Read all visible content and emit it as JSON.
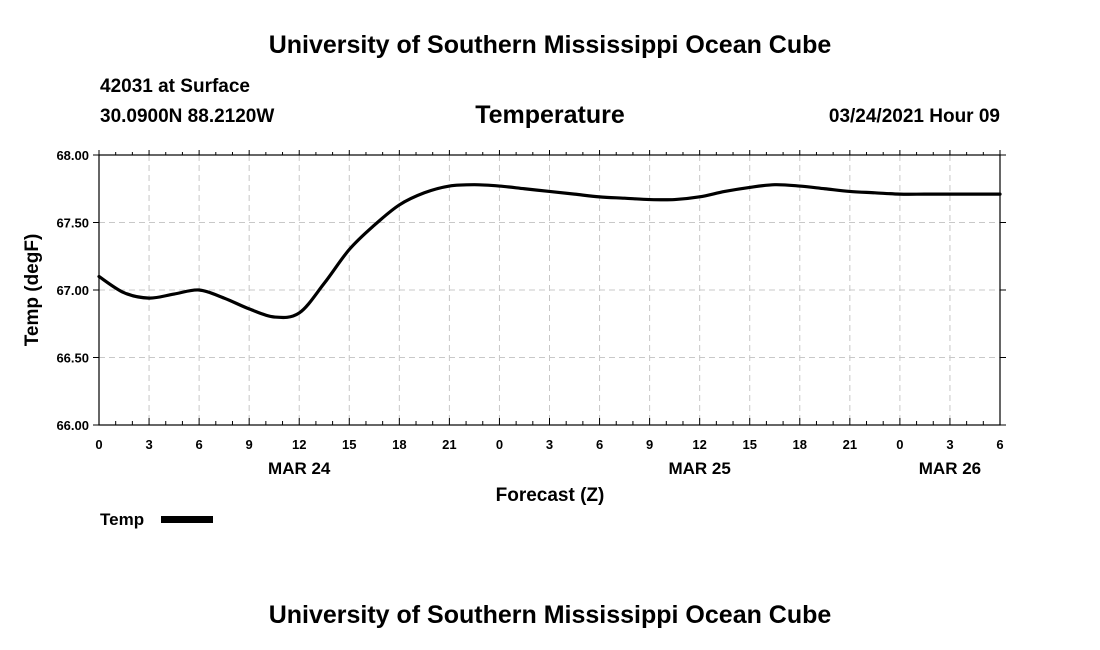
{
  "header": {
    "title_top": "University of Southern Mississippi Ocean Cube",
    "title_bottom": "University of Southern Mississippi Ocean Cube",
    "station": "42031 at Surface",
    "location": "30.0900N 88.2120W",
    "run_time": "03/24/2021 Hour 09"
  },
  "legend": {
    "label": "Temp"
  },
  "chart_data": {
    "type": "line",
    "title": "Temperature",
    "xlabel": "Forecast (Z)",
    "ylabel": "Temp (degF)",
    "ylim": [
      66.0,
      68.0
    ],
    "xlim": [
      0,
      54
    ],
    "yticks": [
      "66.00",
      "66.50",
      "67.00",
      "67.50",
      "68.00"
    ],
    "ytick_values": [
      66.0,
      66.5,
      67.0,
      67.5,
      68.0
    ],
    "xticks": [
      "0",
      "3",
      "6",
      "9",
      "12",
      "15",
      "18",
      "21",
      "0",
      "3",
      "6",
      "9",
      "12",
      "15",
      "18",
      "21",
      "0",
      "3",
      "6"
    ],
    "date_labels": [
      {
        "label": "MAR 24",
        "at": 12
      },
      {
        "label": "MAR 25",
        "at": 36
      },
      {
        "label": "MAR 26",
        "at": 51
      }
    ],
    "grid": true,
    "series": [
      {
        "name": "Temp",
        "x": [
          0,
          1.5,
          3,
          4.5,
          6,
          7.5,
          9,
          10.5,
          12,
          13.5,
          15,
          16.5,
          18,
          19.5,
          21,
          22.5,
          24,
          25.5,
          27,
          28.5,
          30,
          31.5,
          33,
          34.5,
          36,
          37.5,
          39,
          40.5,
          42,
          43.5,
          45,
          46.5,
          48,
          49.5,
          51,
          52.5,
          54
        ],
        "values": [
          67.1,
          66.98,
          66.94,
          66.97,
          67.0,
          66.94,
          66.86,
          66.8,
          66.83,
          67.05,
          67.3,
          67.48,
          67.63,
          67.72,
          67.77,
          67.78,
          67.77,
          67.75,
          67.73,
          67.71,
          67.69,
          67.68,
          67.67,
          67.67,
          67.69,
          67.73,
          67.76,
          67.78,
          67.77,
          67.75,
          67.73,
          67.72,
          67.71,
          67.71,
          67.71,
          67.71,
          67.71
        ]
      }
    ]
  }
}
